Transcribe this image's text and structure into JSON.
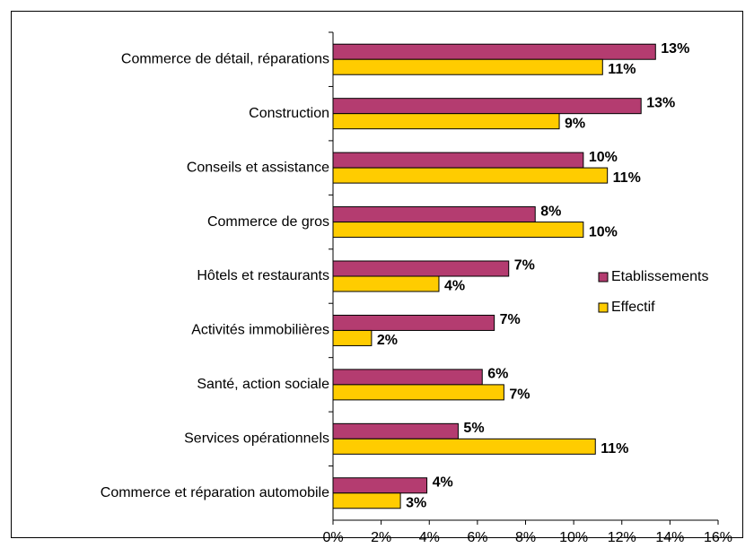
{
  "chart_data": {
    "type": "hbar",
    "categories": [
      "Commerce de détail, réparations",
      "Construction",
      "Conseils et assistance",
      "Commerce de gros",
      "Hôtels et restaurants",
      "Activités immobilières",
      "Santé, action sociale",
      "Services opérationnels",
      "Commerce et réparation automobile"
    ],
    "series": [
      {
        "name": "Etablissements",
        "color": "#b43c70",
        "values": [
          13.4,
          12.8,
          10.4,
          8.4,
          7.3,
          6.7,
          6.2,
          5.2,
          3.9
        ],
        "value_labels": [
          "13%",
          "13%",
          "10%",
          "8%",
          "7%",
          "7%",
          "6%",
          "5%",
          "4%"
        ]
      },
      {
        "name": "Effectif",
        "color": "#ffcc00",
        "values": [
          11.2,
          9.4,
          11.4,
          10.4,
          4.4,
          1.6,
          7.1,
          10.9,
          2.8
        ],
        "value_labels": [
          "11%",
          "9%",
          "11%",
          "10%",
          "4%",
          "2%",
          "7%",
          "11%",
          "3%"
        ]
      }
    ],
    "xlim": [
      0,
      16
    ],
    "xticks": [
      {
        "value": 0,
        "label": "0%"
      },
      {
        "value": 2,
        "label": "2%"
      },
      {
        "value": 4,
        "label": "4%"
      },
      {
        "value": 6,
        "label": "6%"
      },
      {
        "value": 8,
        "label": "8%"
      },
      {
        "value": 10,
        "label": "10%"
      },
      {
        "value": 12,
        "label": "12%"
      },
      {
        "value": 14,
        "label": "14%"
      },
      {
        "value": 16,
        "label": "16%"
      }
    ],
    "legend": "right"
  }
}
